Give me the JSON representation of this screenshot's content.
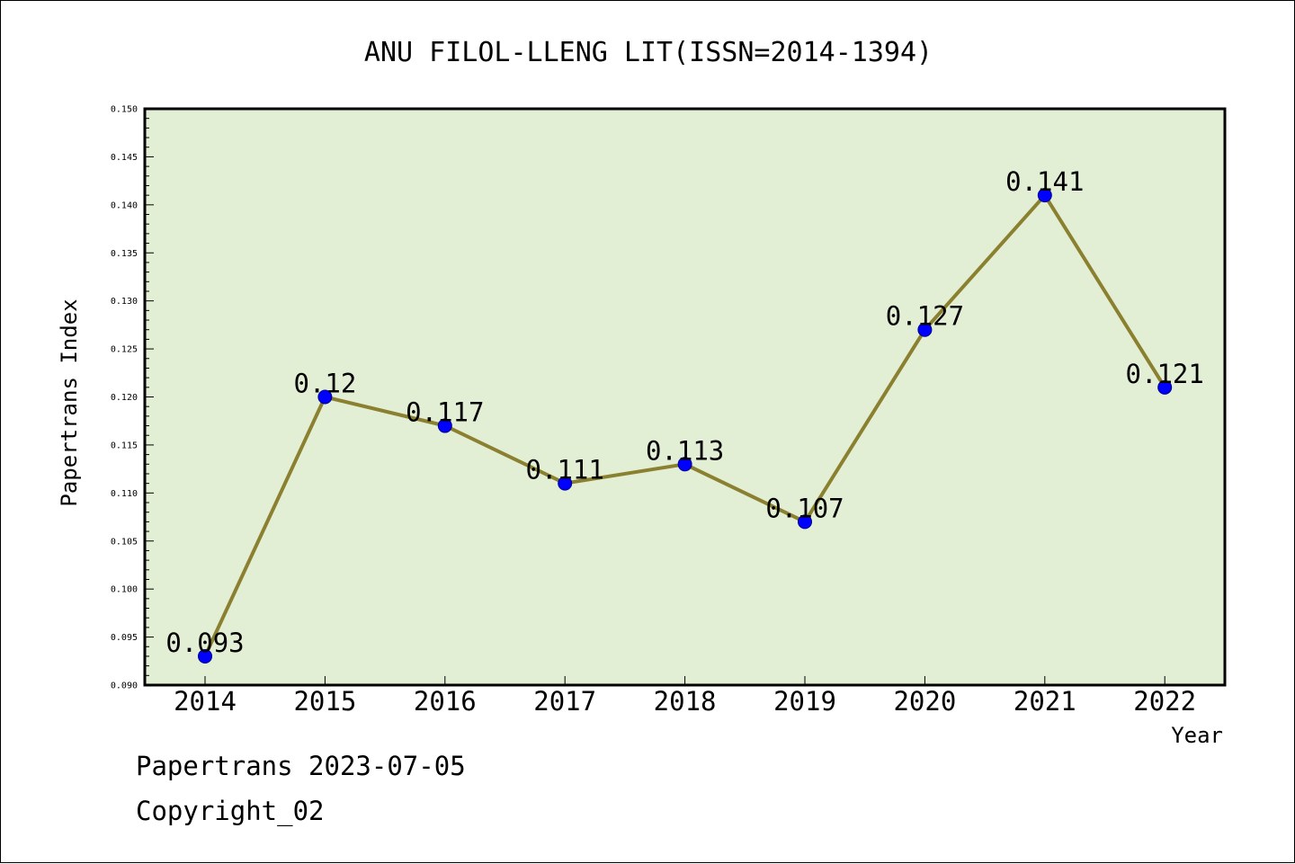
{
  "chart_data": {
    "type": "line",
    "title": "ANU FILOL-LLENG LIT(ISSN=2014-1394)",
    "xlabel": "Year",
    "ylabel": "Papertrans Index",
    "categories": [
      "2014",
      "2015",
      "2016",
      "2017",
      "2018",
      "2019",
      "2020",
      "2021",
      "2022"
    ],
    "values": [
      0.093,
      0.12,
      0.117,
      0.111,
      0.113,
      0.107,
      0.127,
      0.141,
      0.121
    ],
    "data_labels": [
      "0.093",
      "0.12",
      "0.117",
      "0.111",
      "0.113",
      "0.107",
      "0.127",
      "0.141",
      "0.121"
    ],
    "ylim": [
      0.09,
      0.15
    ],
    "yticks": [
      "0.090",
      "0.095",
      "0.100",
      "0.105",
      "0.110",
      "0.115",
      "0.120",
      "0.125",
      "0.130",
      "0.135",
      "0.140",
      "0.145",
      "0.150"
    ],
    "grid": false,
    "legend": "none",
    "colors": {
      "plot_background": "#e2efd4",
      "line": "#8b8030",
      "marker": "#0000ff",
      "marker_edge": "#00008b"
    }
  },
  "footer": {
    "line1": "Papertrans 2023-07-05",
    "line2": "Copyright_02"
  }
}
